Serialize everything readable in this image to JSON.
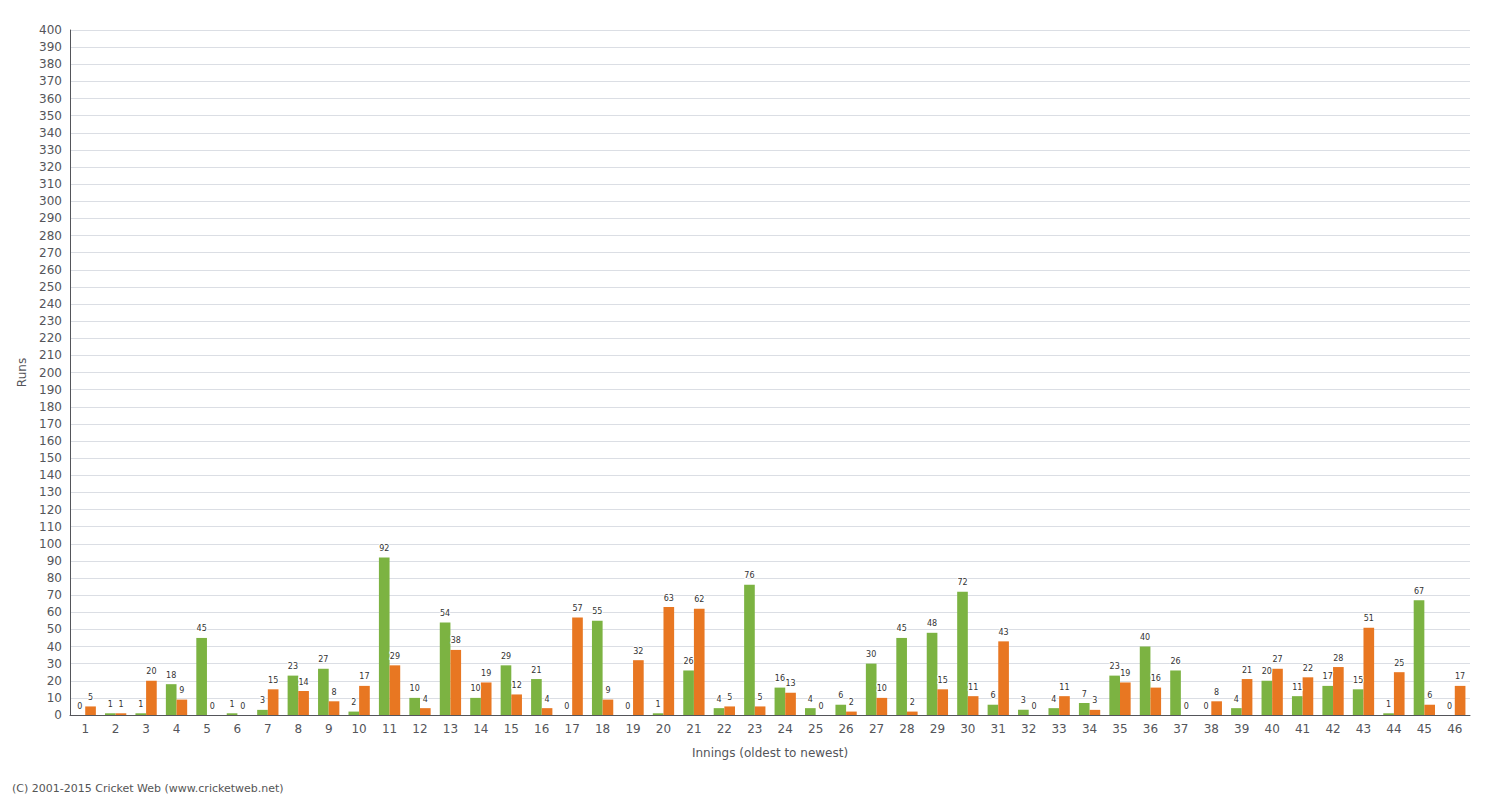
{
  "chart_data": {
    "type": "bar",
    "xlabel": "Innings (oldest to newest)",
    "ylabel": "Runs",
    "annotations": [
      "(C) 2001-2015 Cricket Web (www.cricketweb.net)"
    ],
    "categories": [
      "1",
      "2",
      "3",
      "4",
      "5",
      "6",
      "7",
      "8",
      "9",
      "10",
      "11",
      "12",
      "13",
      "14",
      "15",
      "16",
      "17",
      "18",
      "19",
      "20",
      "21",
      "22",
      "23",
      "24",
      "25",
      "26",
      "27",
      "28",
      "29",
      "30",
      "31",
      "32",
      "33",
      "34",
      "35",
      "36",
      "37",
      "38",
      "39",
      "40",
      "41",
      "42",
      "43",
      "44",
      "45",
      "46"
    ],
    "series": [
      {
        "color": "#7cb342",
        "values": [
          0,
          1,
          1,
          18,
          45,
          1,
          3,
          23,
          27,
          2,
          92,
          10,
          54,
          10,
          29,
          21,
          0,
          55,
          0,
          1,
          26,
          4,
          76,
          16,
          4,
          6,
          30,
          45,
          48,
          72,
          6,
          3,
          4,
          7,
          23,
          40,
          26,
          0,
          4,
          20,
          11,
          17,
          15,
          1,
          67,
          0
        ]
      },
      {
        "color": "#e87722",
        "values": [
          5,
          1,
          20,
          9,
          0,
          0,
          15,
          14,
          8,
          17,
          29,
          4,
          38,
          19,
          12,
          4,
          57,
          9,
          32,
          63,
          62,
          5,
          5,
          13,
          0,
          2,
          10,
          2,
          15,
          11,
          43,
          0,
          11,
          3,
          19,
          16,
          0,
          8,
          21,
          27,
          22,
          28,
          51,
          25,
          6,
          17
        ]
      }
    ],
    "ylim": [
      0,
      400
    ],
    "yticks": [
      0,
      10,
      20,
      30,
      40,
      50,
      60,
      70,
      80,
      90,
      100,
      110,
      120,
      130,
      140,
      150,
      160,
      170,
      180,
      190,
      200,
      210,
      220,
      230,
      240,
      250,
      260,
      270,
      280,
      290,
      300,
      310,
      320,
      330,
      340,
      350,
      360,
      370,
      380,
      390,
      400
    ],
    "grid": true,
    "data_labels": true
  }
}
